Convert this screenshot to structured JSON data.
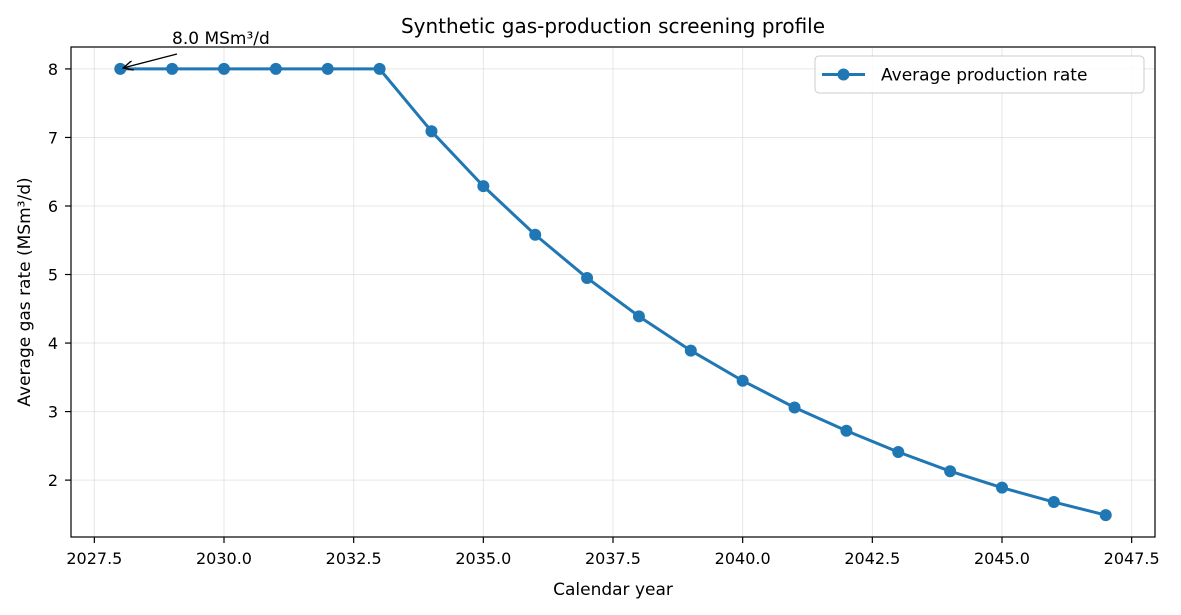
{
  "chart_data": {
    "type": "line",
    "title": "Synthetic gas-production screening profile",
    "xlabel": "Calendar year",
    "ylabel": "Average gas rate (MSm³/d)",
    "xlim": [
      2027.05,
      2047.95
    ],
    "ylim": [
      1.17,
      8.32
    ],
    "x_ticks": [
      2027.5,
      2030.0,
      2032.5,
      2035.0,
      2037.5,
      2040.0,
      2042.5,
      2045.0,
      2047.5
    ],
    "x_tick_labels": [
      "2027.5",
      "2030.0",
      "2032.5",
      "2035.0",
      "2037.5",
      "2040.0",
      "2042.5",
      "2045.0",
      "2047.5"
    ],
    "y_ticks": [
      2,
      3,
      4,
      5,
      6,
      7,
      8
    ],
    "y_tick_labels": [
      "2",
      "3",
      "4",
      "5",
      "6",
      "7",
      "8"
    ],
    "grid": true,
    "legend_position": "top-right",
    "series": [
      {
        "name": "Average production rate",
        "color": "#1f77b4",
        "marker": "circle",
        "x": [
          2028,
          2029,
          2030,
          2031,
          2032,
          2033,
          2034,
          2035,
          2036,
          2037,
          2038,
          2039,
          2040,
          2041,
          2042,
          2043,
          2044,
          2045,
          2046,
          2047
        ],
        "y": [
          8.0,
          8.0,
          8.0,
          8.0,
          8.0,
          8.0,
          7.09,
          6.29,
          5.58,
          4.95,
          4.39,
          3.89,
          3.45,
          3.06,
          2.72,
          2.41,
          2.13,
          1.89,
          1.68,
          1.49
        ]
      }
    ],
    "annotations": [
      {
        "text": "8.0 MSm³/d",
        "target_x": 2028,
        "target_y": 8.0,
        "arrow": true
      }
    ]
  }
}
